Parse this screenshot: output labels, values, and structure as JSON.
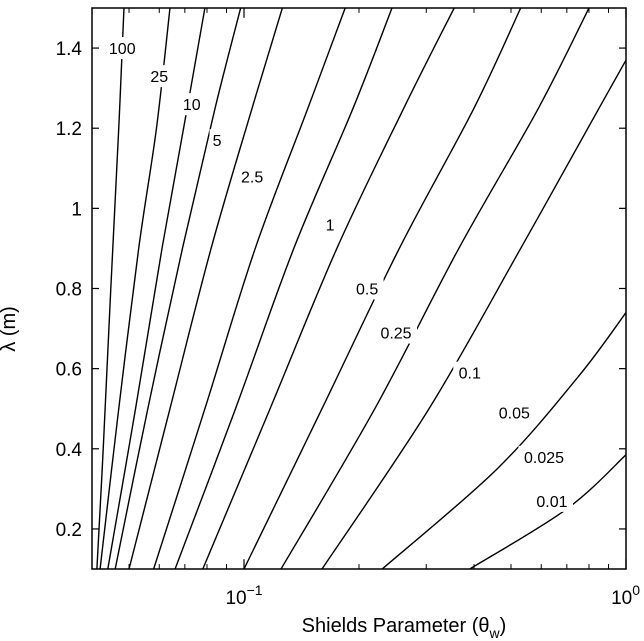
{
  "chart_data": {
    "type": "contour",
    "title": "",
    "xlabel": "Shields Parameter (θ",
    "xlabel_sub": "w",
    "xlabel_close": ")",
    "ylabel": "λ (m)",
    "x_scale": "log",
    "xlim": [
      0.04,
      1.0
    ],
    "ylim": [
      0.1,
      1.5
    ],
    "x_ticks": [
      {
        "value": 0.1,
        "base": "10",
        "exp": "−1"
      },
      {
        "value": 1.0,
        "base": "10",
        "exp": "0"
      }
    ],
    "y_ticks": [
      {
        "value": 0.2,
        "label": "0.2"
      },
      {
        "value": 0.4,
        "label": "0.4"
      },
      {
        "value": 0.6,
        "label": "0.6"
      },
      {
        "value": 0.8,
        "label": "0.8"
      },
      {
        "value": 1.0,
        "label": "1"
      },
      {
        "value": 1.2,
        "label": "1.2"
      },
      {
        "value": 1.4,
        "label": "1.4"
      }
    ],
    "grid": false,
    "contours": [
      {
        "level": "100",
        "points": [
          [
            0.0412,
            0.1
          ],
          [
            0.0428,
            0.4
          ],
          [
            0.0448,
            0.8
          ],
          [
            0.047,
            1.2
          ],
          [
            0.0485,
            1.5
          ]
        ],
        "label_at": [
          0.048,
          1.4
        ]
      },
      {
        "level": "25",
        "points": [
          [
            0.042,
            0.1
          ],
          [
            0.047,
            0.5
          ],
          [
            0.053,
            0.9
          ],
          [
            0.059,
            1.2
          ],
          [
            0.064,
            1.5
          ]
        ],
        "label_at": [
          0.06,
          1.33
        ]
      },
      {
        "level": "10",
        "points": [
          [
            0.044,
            0.1
          ],
          [
            0.052,
            0.5
          ],
          [
            0.061,
            0.9
          ],
          [
            0.071,
            1.25
          ],
          [
            0.079,
            1.5
          ]
        ],
        "label_at": [
          0.073,
          1.26
        ]
      },
      {
        "level": "5",
        "points": [
          [
            0.046,
            0.1
          ],
          [
            0.056,
            0.5
          ],
          [
            0.069,
            0.9
          ],
          [
            0.084,
            1.25
          ],
          [
            0.098,
            1.5
          ]
        ],
        "label_at": [
          0.085,
          1.17
        ]
      },
      {
        "level": "2.5",
        "points": [
          [
            0.05,
            0.1
          ],
          [
            0.064,
            0.5
          ],
          [
            0.082,
            0.9
          ],
          [
            0.105,
            1.25
          ],
          [
            0.126,
            1.5
          ]
        ],
        "label_at": [
          0.105,
          1.08
        ]
      },
      {
        "level": "1",
        "points": [
          [
            0.058,
            0.1
          ],
          [
            0.079,
            0.5
          ],
          [
            0.107,
            0.9
          ],
          [
            0.147,
            1.25
          ],
          [
            0.184,
            1.5
          ]
        ],
        "label_at": [
          0.168,
          0.96
        ]
      },
      {
        "level": "0.5",
        "points": [
          [
            0.066,
            0.1
          ],
          [
            0.095,
            0.5
          ],
          [
            0.135,
            0.9
          ],
          [
            0.193,
            1.25
          ],
          [
            0.244,
            1.5
          ]
        ],
        "label_at": [
          0.21,
          0.8
        ]
      },
      {
        "level": "0.25",
        "points": [
          [
            0.078,
            0.1
          ],
          [
            0.117,
            0.5
          ],
          [
            0.175,
            0.9
          ],
          [
            0.262,
            1.25
          ],
          [
            0.355,
            1.5
          ]
        ],
        "label_at": [
          0.25,
          0.69
        ]
      },
      {
        "level": "0.1",
        "points": [
          [
            0.1,
            0.1
          ],
          [
            0.16,
            0.5
          ],
          [
            0.255,
            0.9
          ],
          [
            0.4,
            1.25
          ],
          [
            0.53,
            1.5
          ]
        ],
        "label_at": [
          0.39,
          0.59
        ]
      },
      {
        "level": "0.05",
        "points": [
          [
            0.125,
            0.1
          ],
          [
            0.22,
            0.5
          ],
          [
            0.365,
            0.9
          ],
          [
            0.59,
            1.25
          ],
          [
            0.8,
            1.5
          ]
        ],
        "label_at": [
          0.51,
          0.49
        ]
      },
      {
        "level": "0.025",
        "points": [
          [
            0.16,
            0.1
          ],
          [
            0.305,
            0.5
          ],
          [
            0.53,
            0.9
          ],
          [
            0.85,
            1.25
          ],
          [
            1.0,
            1.37
          ]
        ],
        "label_at": [
          0.61,
          0.38
        ]
      },
      {
        "level": "0.01",
        "points": [
          [
            0.23,
            0.1
          ],
          [
            0.46,
            0.35
          ],
          [
            0.75,
            0.58
          ],
          [
            1.0,
            0.74
          ]
        ],
        "label_at": [
          0.64,
          0.27
        ]
      },
      {
        "level": "",
        "points": [
          [
            0.39,
            0.1
          ],
          [
            0.7,
            0.25
          ],
          [
            1.0,
            0.385
          ]
        ],
        "label_at": null
      }
    ]
  }
}
